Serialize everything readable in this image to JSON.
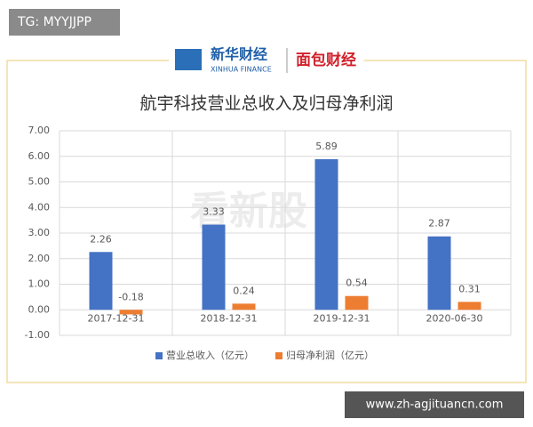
{
  "tag": "TG: MYYJJPP",
  "logo": {
    "name": "新华财经",
    "subtitle": "XINHUA FINANCE",
    "partner": "面包财经"
  },
  "watermark": "看新股",
  "footer": "www.zh-agjituancn.com",
  "chart_data": {
    "type": "bar",
    "title": "航宇科技营业总收入及归母净利润",
    "categories": [
      "2017-12-31",
      "2018-12-31",
      "2019-12-31",
      "2020-06-30"
    ],
    "series": [
      {
        "name": "营业总收入（亿元）",
        "color": "#4472c4",
        "values": [
          2.26,
          3.33,
          5.89,
          2.87
        ]
      },
      {
        "name": "归母净利润（亿元）",
        "color": "#ed7d31",
        "values": [
          -0.18,
          0.24,
          0.54,
          0.31
        ]
      }
    ],
    "ylim": [
      -1,
      7
    ],
    "yticks": [
      {
        "value": -1,
        "label": "-1.00"
      },
      {
        "value": 0,
        "label": "0.00"
      },
      {
        "value": 1,
        "label": "1.00"
      },
      {
        "value": 2,
        "label": "2.00"
      },
      {
        "value": 3,
        "label": "3.00"
      },
      {
        "value": 4,
        "label": "4.00"
      },
      {
        "value": 5,
        "label": "5.00"
      },
      {
        "value": 6,
        "label": "6.00"
      },
      {
        "value": 7,
        "label": "7.00"
      }
    ],
    "grid": true,
    "legend": "bottom"
  }
}
